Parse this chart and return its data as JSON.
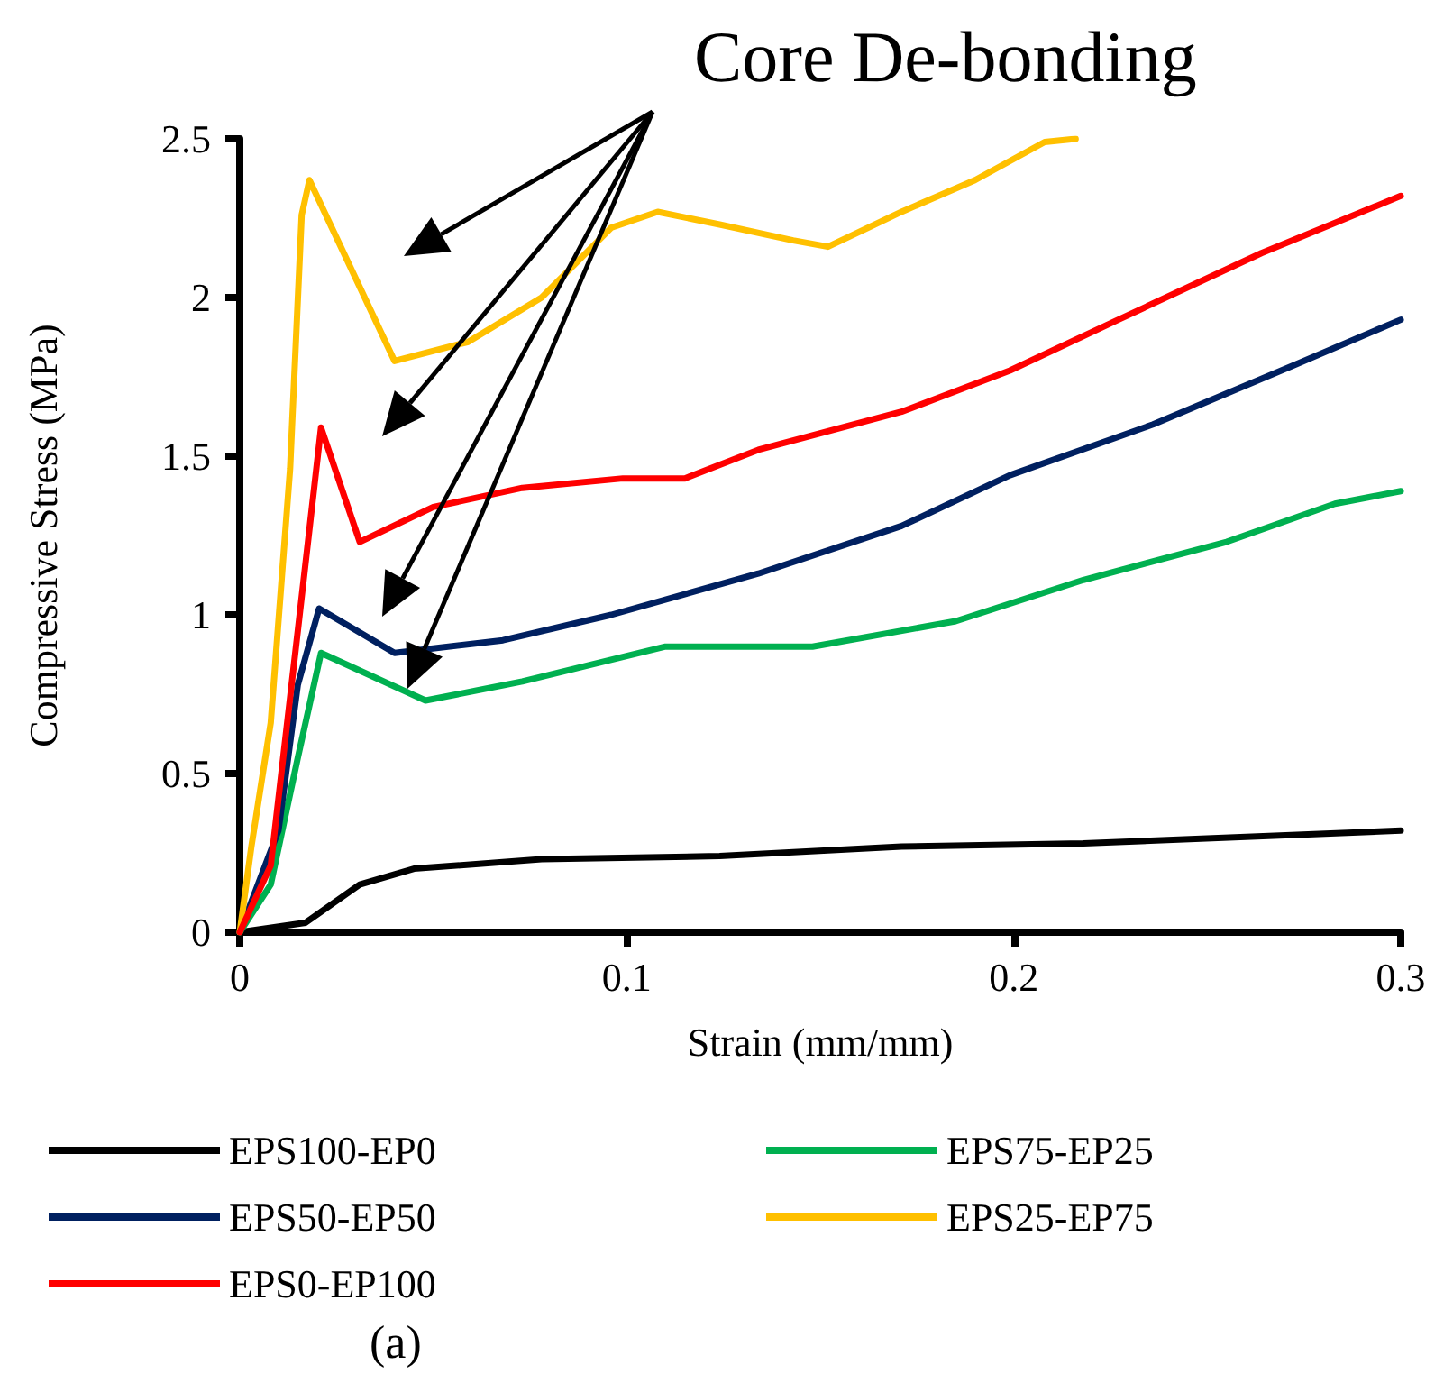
{
  "chart_data": {
    "type": "line",
    "xlabel": "Strain (mm/mm)",
    "ylabel": "Compressive Stress (MPa)",
    "annotations": [
      "Core De-bonding",
      "(a)"
    ],
    "xlim": [
      0,
      0.3
    ],
    "xticks": [
      0,
      0.1,
      0.2,
      0.3
    ],
    "ylim": [
      0,
      2.5
    ],
    "yticks": [
      0,
      0.5,
      1,
      1.5,
      2,
      2.5
    ],
    "grid": false,
    "legend": "bottom",
    "marker": "none",
    "line_style": "solid",
    "series": [
      {
        "name": "EPS100-EP0",
        "color": "#000000",
        "x": [
          0,
          0.017,
          0.031,
          0.045,
          0.078,
          0.124,
          0.171,
          0.218,
          0.3
        ],
        "values": [
          0,
          0.03,
          0.15,
          0.2,
          0.23,
          0.24,
          0.27,
          0.28,
          0.32
        ]
      },
      {
        "name": "EPS75-EP25",
        "color": "#00b050",
        "x": [
          0,
          0.008,
          0.015,
          0.021,
          0.048,
          0.073,
          0.11,
          0.148,
          0.185,
          0.218,
          0.255,
          0.283,
          0.3
        ],
        "values": [
          0,
          0.15,
          0.55,
          0.88,
          0.73,
          0.79,
          0.9,
          0.9,
          0.98,
          1.11,
          1.23,
          1.35,
          1.39
        ]
      },
      {
        "name": "EPS50-EP50",
        "color": "#002060",
        "x": [
          0,
          0.01,
          0.015,
          0.0205,
          0.04,
          0.068,
          0.096,
          0.134,
          0.171,
          0.199,
          0.236,
          0.273,
          0.3
        ],
        "values": [
          0,
          0.32,
          0.78,
          1.02,
          0.88,
          0.92,
          1.0,
          1.13,
          1.28,
          1.44,
          1.6,
          1.79,
          1.93
        ]
      },
      {
        "name": "EPS25-EP75",
        "color": "#ffc000",
        "x": [
          0,
          0.003,
          0.008,
          0.013,
          0.016,
          0.018,
          0.04,
          0.059,
          0.078,
          0.096,
          0.108,
          0.124,
          0.143,
          0.152,
          0.171,
          0.19,
          0.208,
          0.216
        ],
        "values": [
          0,
          0.27,
          0.66,
          1.46,
          2.26,
          2.37,
          1.8,
          1.86,
          2.0,
          2.22,
          2.27,
          2.23,
          2.18,
          2.16,
          2.27,
          2.37,
          2.49,
          2.5
        ]
      },
      {
        "name": "EPS0-EP100",
        "color": "#ff0000",
        "x": [
          0,
          0.008,
          0.015,
          0.021,
          0.031,
          0.05,
          0.073,
          0.099,
          0.115,
          0.134,
          0.171,
          0.199,
          0.227,
          0.264,
          0.3
        ],
        "values": [
          0,
          0.21,
          0.95,
          1.59,
          1.23,
          1.34,
          1.4,
          1.43,
          1.43,
          1.52,
          1.64,
          1.77,
          1.93,
          2.14,
          2.32
        ]
      }
    ]
  }
}
